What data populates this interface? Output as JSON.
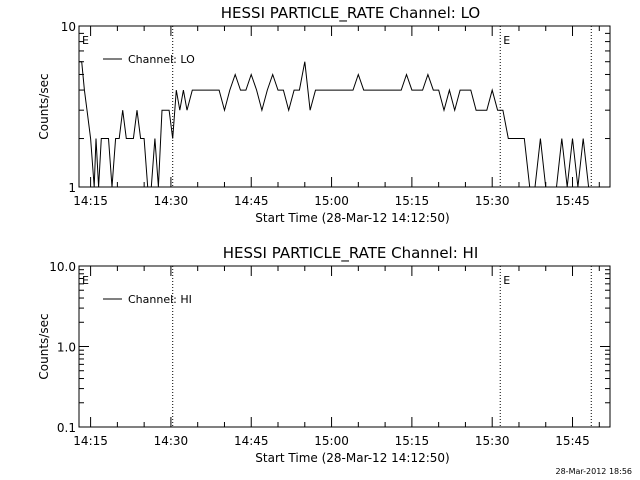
{
  "chart_data": [
    {
      "type": "line",
      "title": "HESSI PARTICLE_RATE Channel: LO",
      "xlabel": "Start Time (28-Mar-12 14:12:50)",
      "ylabel": "Counts/sec",
      "y_scale": "log",
      "ylim": [
        1,
        10
      ],
      "y_ticks": [
        "1",
        "10"
      ],
      "x_tick_labels": [
        "14:15",
        "14:30",
        "14:45",
        "15:00",
        "15:15",
        "15:30",
        "15:45"
      ],
      "legend": {
        "placement": "top-left",
        "entries": [
          "Channel: LO"
        ]
      },
      "markers": [
        {
          "label": "E",
          "time": "14:12:50"
        },
        {
          "label": "",
          "time": "14:30:20"
        },
        {
          "label": "E",
          "time": "15:31:30"
        },
        {
          "label": "",
          "time": "15:48:30"
        }
      ],
      "series": [
        {
          "name": "Channel: LO",
          "x": [
            "14:12:50",
            "14:13:20",
            "14:13:50",
            "14:14:20",
            "14:15:00",
            "14:15:40",
            "14:16:00",
            "14:16:30",
            "14:17:00",
            "14:17:40",
            "14:18:20",
            "14:19:00",
            "14:19:40",
            "14:20:20",
            "14:21:00",
            "14:21:40",
            "14:22:20",
            "14:23:00",
            "14:23:40",
            "14:24:20",
            "14:25:00",
            "14:25:40",
            "14:26:20",
            "14:27:00",
            "14:27:40",
            "14:28:20",
            "14:29:00",
            "14:29:40",
            "14:30:20",
            "14:31:00",
            "14:31:40",
            "14:32:20",
            "14:33:00",
            "14:34:00",
            "14:35:00",
            "14:36:00",
            "14:37:00",
            "14:38:00",
            "14:39:00",
            "14:40:00",
            "14:41:00",
            "14:42:00",
            "14:43:00",
            "14:44:00",
            "14:45:00",
            "14:46:00",
            "14:47:00",
            "14:48:00",
            "14:49:00",
            "14:50:00",
            "14:51:00",
            "14:52:00",
            "14:53:00",
            "14:54:00",
            "14:55:00",
            "14:56:00",
            "14:57:00",
            "14:58:00",
            "14:59:00",
            "15:00:00",
            "15:01:00",
            "15:02:00",
            "15:03:00",
            "15:04:00",
            "15:05:00",
            "15:06:00",
            "15:07:00",
            "15:08:00",
            "15:09:00",
            "15:10:00",
            "15:11:00",
            "15:12:00",
            "15:13:00",
            "15:14:00",
            "15:15:00",
            "15:16:00",
            "15:17:00",
            "15:18:00",
            "15:19:00",
            "15:20:00",
            "15:21:00",
            "15:22:00",
            "15:23:00",
            "15:24:00",
            "15:25:00",
            "15:26:00",
            "15:27:00",
            "15:28:00",
            "15:29:00",
            "15:30:00",
            "15:31:00",
            "15:32:00",
            "15:33:00",
            "15:34:00",
            "15:35:00",
            "15:36:00",
            "15:37:00",
            "15:38:00",
            "15:39:00",
            "15:40:00",
            "15:41:00",
            "15:42:00",
            "15:43:00",
            "15:44:00",
            "15:45:00",
            "15:46:00",
            "15:47:00",
            "15:48:00"
          ],
          "values": [
            6,
            6,
            4,
            3,
            2,
            1,
            2,
            1,
            2,
            2,
            2,
            1,
            2,
            2,
            3,
            2,
            2,
            2,
            3,
            2,
            2,
            1,
            1,
            2,
            1,
            3,
            3,
            3,
            2,
            4,
            3,
            4,
            3,
            4,
            4,
            4,
            4,
            4,
            4,
            3,
            4,
            5,
            4,
            4,
            5,
            4,
            3,
            4,
            5,
            4,
            4,
            3,
            4,
            4,
            6,
            3,
            4,
            4,
            4,
            4,
            4,
            4,
            4,
            4,
            5,
            4,
            4,
            4,
            4,
            4,
            4,
            4,
            4,
            5,
            4,
            4,
            4,
            5,
            4,
            4,
            3,
            4,
            3,
            4,
            4,
            4,
            3,
            3,
            3,
            4,
            3,
            3,
            2,
            2,
            2,
            2,
            1,
            1,
            2,
            1,
            1,
            1,
            2,
            1,
            2,
            1,
            2,
            1
          ]
        }
      ]
    },
    {
      "type": "line",
      "title": "HESSI PARTICLE_RATE Channel: HI",
      "xlabel": "Start Time (28-Mar-12 14:12:50)",
      "ylabel": "Counts/sec",
      "y_scale": "log",
      "ylim": [
        0.1,
        10
      ],
      "y_ticks": [
        "0.1",
        "1.0",
        "10.0"
      ],
      "x_tick_labels": [
        "14:15",
        "14:30",
        "14:45",
        "15:00",
        "15:15",
        "15:30",
        "15:45"
      ],
      "legend": {
        "placement": "top-left",
        "entries": [
          "Channel: HI"
        ]
      },
      "markers": [
        {
          "label": "E",
          "time": "14:12:50"
        },
        {
          "label": "",
          "time": "14:30:20"
        },
        {
          "label": "E",
          "time": "15:31:30"
        },
        {
          "label": "",
          "time": "15:48:30"
        }
      ],
      "series": [
        {
          "name": "Channel: HI",
          "x": [],
          "values": []
        }
      ]
    }
  ],
  "footer": {
    "timestamp": "28-Mar-2012 18:56"
  }
}
